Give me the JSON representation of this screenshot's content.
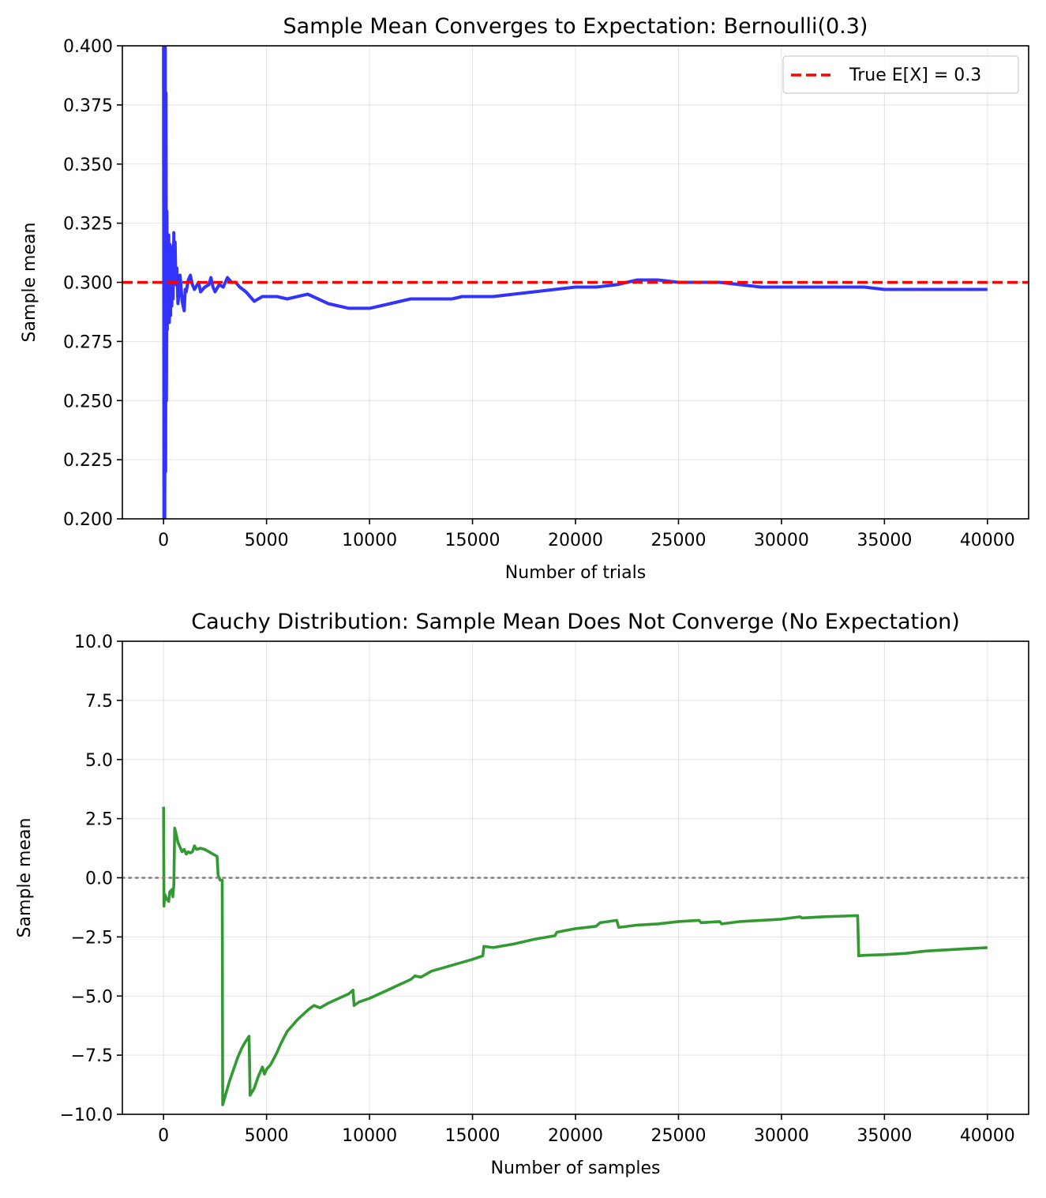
{
  "chart_data": [
    {
      "type": "line",
      "title": "Sample Mean Converges to Expectation: Bernoulli(0.3)",
      "xlabel": "Number of trials",
      "ylabel": "Sample mean",
      "xlim": [
        -2000,
        42000
      ],
      "ylim": [
        0.2,
        0.4
      ],
      "grid": true,
      "legend_position": "top-right",
      "xticks": [
        0,
        5000,
        10000,
        15000,
        20000,
        25000,
        30000,
        35000,
        40000
      ],
      "xtick_labels": [
        "0",
        "5000",
        "10000",
        "15000",
        "20000",
        "25000",
        "30000",
        "35000",
        "40000"
      ],
      "yticks": [
        0.2,
        0.225,
        0.25,
        0.275,
        0.3,
        0.325,
        0.35,
        0.375,
        0.4
      ],
      "ytick_labels": [
        "0.200",
        "0.225",
        "0.250",
        "0.275",
        "0.300",
        "0.325",
        "0.350",
        "0.375",
        "0.400"
      ],
      "reference_lines": [
        {
          "y": 0.3,
          "color": "#ff0000",
          "style": "dashed",
          "label": "True E[X] = 0.3"
        }
      ],
      "series": [
        {
          "color": "#3333ff",
          "points": [
            [
              0,
              0.4
            ],
            [
              20,
              0.2
            ],
            [
              40,
              0.4
            ],
            [
              60,
              0.2
            ],
            [
              80,
              0.4
            ],
            [
              100,
              0.22
            ],
            [
              120,
              0.38
            ],
            [
              140,
              0.25
            ],
            [
              160,
              0.33
            ],
            [
              180,
              0.28
            ],
            [
              200,
              0.315
            ],
            [
              220,
              0.29
            ],
            [
              250,
              0.32
            ],
            [
              280,
              0.283
            ],
            [
              310,
              0.316
            ],
            [
              340,
              0.286
            ],
            [
              370,
              0.315
            ],
            [
              400,
              0.29
            ],
            [
              430,
              0.311
            ],
            [
              460,
              0.293
            ],
            [
              500,
              0.321
            ],
            [
              530,
              0.305
            ],
            [
              560,
              0.317
            ],
            [
              600,
              0.299
            ],
            [
              650,
              0.306
            ],
            [
              700,
              0.291
            ],
            [
              750,
              0.296
            ],
            [
              800,
              0.303
            ],
            [
              900,
              0.292
            ],
            [
              1000,
              0.288
            ],
            [
              1050,
              0.297
            ],
            [
              1100,
              0.296
            ],
            [
              1200,
              0.301
            ],
            [
              1300,
              0.303
            ],
            [
              1400,
              0.299
            ],
            [
              1500,
              0.297
            ],
            [
              1700,
              0.3
            ],
            [
              1800,
              0.296
            ],
            [
              2000,
              0.298
            ],
            [
              2200,
              0.299
            ],
            [
              2300,
              0.302
            ],
            [
              2400,
              0.298
            ],
            [
              2500,
              0.296
            ],
            [
              2700,
              0.299
            ],
            [
              2900,
              0.298
            ],
            [
              3100,
              0.302
            ],
            [
              3300,
              0.3
            ],
            [
              3500,
              0.3
            ],
            [
              3700,
              0.298
            ],
            [
              4000,
              0.296
            ],
            [
              4200,
              0.294
            ],
            [
              4400,
              0.292
            ],
            [
              4600,
              0.293
            ],
            [
              4800,
              0.294
            ],
            [
              5000,
              0.294
            ],
            [
              5500,
              0.294
            ],
            [
              6000,
              0.293
            ],
            [
              6500,
              0.294
            ],
            [
              7000,
              0.295
            ],
            [
              7500,
              0.293
            ],
            [
              8000,
              0.291
            ],
            [
              8500,
              0.29
            ],
            [
              9000,
              0.289
            ],
            [
              9500,
              0.289
            ],
            [
              10000,
              0.289
            ],
            [
              10500,
              0.29
            ],
            [
              11000,
              0.291
            ],
            [
              11500,
              0.292
            ],
            [
              12000,
              0.293
            ],
            [
              12500,
              0.293
            ],
            [
              13000,
              0.293
            ],
            [
              13500,
              0.293
            ],
            [
              14000,
              0.293
            ],
            [
              14500,
              0.294
            ],
            [
              15000,
              0.294
            ],
            [
              16000,
              0.294
            ],
            [
              17000,
              0.295
            ],
            [
              18000,
              0.296
            ],
            [
              19000,
              0.297
            ],
            [
              20000,
              0.298
            ],
            [
              21000,
              0.298
            ],
            [
              22000,
              0.299
            ],
            [
              22500,
              0.3
            ],
            [
              23000,
              0.301
            ],
            [
              23500,
              0.301
            ],
            [
              24000,
              0.301
            ],
            [
              25000,
              0.3
            ],
            [
              26000,
              0.3
            ],
            [
              27000,
              0.3
            ],
            [
              28000,
              0.299
            ],
            [
              29000,
              0.298
            ],
            [
              30000,
              0.298
            ],
            [
              31000,
              0.298
            ],
            [
              32000,
              0.298
            ],
            [
              33000,
              0.298
            ],
            [
              34000,
              0.298
            ],
            [
              35000,
              0.297
            ],
            [
              36000,
              0.297
            ],
            [
              37000,
              0.297
            ],
            [
              38000,
              0.297
            ],
            [
              39000,
              0.297
            ],
            [
              40000,
              0.297
            ]
          ]
        }
      ]
    },
    {
      "type": "line",
      "title": "Cauchy Distribution: Sample Mean Does Not Converge (No Expectation)",
      "xlabel": "Number of samples",
      "ylabel": "Sample mean",
      "xlim": [
        -2000,
        42000
      ],
      "ylim": [
        -10,
        10
      ],
      "grid": true,
      "xticks": [
        0,
        5000,
        10000,
        15000,
        20000,
        25000,
        30000,
        35000,
        40000
      ],
      "xtick_labels": [
        "0",
        "5000",
        "10000",
        "15000",
        "20000",
        "25000",
        "30000",
        "35000",
        "40000"
      ],
      "yticks": [
        -10,
        -7.5,
        -5,
        -2.5,
        0,
        2.5,
        5,
        7.5,
        10
      ],
      "ytick_labels": [
        "−10.0",
        "−7.5",
        "−5.0",
        "−2.5",
        "0.0",
        "2.5",
        "5.0",
        "7.5",
        "10.0"
      ],
      "reference_lines": [
        {
          "y": 0,
          "color": "#808080",
          "style": "dotted"
        }
      ],
      "series": [
        {
          "color": "#339933",
          "points": [
            [
              0,
              3.0
            ],
            [
              20,
              -1.2
            ],
            [
              60,
              -0.7
            ],
            [
              150,
              -0.9
            ],
            [
              250,
              -1.0
            ],
            [
              300,
              -0.6
            ],
            [
              400,
              -0.5
            ],
            [
              450,
              -0.8
            ],
            [
              500,
              -0.3
            ],
            [
              540,
              2.1
            ],
            [
              600,
              1.9
            ],
            [
              700,
              1.5
            ],
            [
              800,
              1.3
            ],
            [
              900,
              1.1
            ],
            [
              1000,
              1.2
            ],
            [
              1100,
              1.0
            ],
            [
              1200,
              1.1
            ],
            [
              1300,
              1.05
            ],
            [
              1400,
              1.1
            ],
            [
              1500,
              1.35
            ],
            [
              1600,
              1.2
            ],
            [
              1800,
              1.25
            ],
            [
              2000,
              1.2
            ],
            [
              2200,
              1.1
            ],
            [
              2400,
              1.0
            ],
            [
              2600,
              0.9
            ],
            [
              2650,
              0.1
            ],
            [
              2750,
              -0.1
            ],
            [
              2850,
              -0.1
            ],
            [
              2870,
              -9.6
            ],
            [
              3000,
              -9.2
            ],
            [
              3200,
              -8.6
            ],
            [
              3400,
              -8.1
            ],
            [
              3600,
              -7.6
            ],
            [
              3800,
              -7.2
            ],
            [
              4000,
              -6.9
            ],
            [
              4150,
              -6.7
            ],
            [
              4200,
              -9.2
            ],
            [
              4400,
              -8.9
            ],
            [
              4600,
              -8.4
            ],
            [
              4700,
              -8.2
            ],
            [
              4800,
              -8.0
            ],
            [
              4900,
              -8.3
            ],
            [
              5000,
              -8.1
            ],
            [
              5200,
              -7.9
            ],
            [
              5500,
              -7.4
            ],
            [
              5700,
              -7.0
            ],
            [
              6000,
              -6.5
            ],
            [
              6500,
              -6.0
            ],
            [
              7000,
              -5.6
            ],
            [
              7300,
              -5.4
            ],
            [
              7600,
              -5.5
            ],
            [
              8000,
              -5.3
            ],
            [
              8500,
              -5.1
            ],
            [
              9000,
              -4.9
            ],
            [
              9200,
              -4.75
            ],
            [
              9250,
              -5.4
            ],
            [
              9500,
              -5.25
            ],
            [
              10000,
              -5.1
            ],
            [
              11000,
              -4.7
            ],
            [
              11500,
              -4.5
            ],
            [
              12000,
              -4.3
            ],
            [
              12200,
              -4.15
            ],
            [
              12500,
              -4.2
            ],
            [
              13000,
              -3.95
            ],
            [
              14000,
              -3.7
            ],
            [
              15000,
              -3.45
            ],
            [
              15500,
              -3.3
            ],
            [
              15550,
              -2.9
            ],
            [
              16000,
              -2.95
            ],
            [
              17000,
              -2.8
            ],
            [
              18000,
              -2.6
            ],
            [
              19000,
              -2.45
            ],
            [
              19100,
              -2.3
            ],
            [
              20000,
              -2.15
            ],
            [
              21000,
              -2.05
            ],
            [
              21200,
              -1.9
            ],
            [
              22000,
              -1.8
            ],
            [
              22100,
              -2.1
            ],
            [
              23000,
              -2.0
            ],
            [
              24000,
              -1.95
            ],
            [
              25000,
              -1.85
            ],
            [
              26000,
              -1.8
            ],
            [
              26100,
              -1.9
            ],
            [
              27000,
              -1.85
            ],
            [
              27100,
              -1.95
            ],
            [
              28000,
              -1.85
            ],
            [
              29000,
              -1.8
            ],
            [
              30000,
              -1.75
            ],
            [
              30900,
              -1.65
            ],
            [
              31000,
              -1.7
            ],
            [
              32000,
              -1.65
            ],
            [
              33000,
              -1.62
            ],
            [
              33700,
              -1.6
            ],
            [
              33750,
              -3.3
            ],
            [
              34000,
              -3.28
            ],
            [
              35000,
              -3.25
            ],
            [
              36000,
              -3.2
            ],
            [
              37000,
              -3.1
            ],
            [
              38000,
              -3.05
            ],
            [
              39000,
              -3.0
            ],
            [
              40000,
              -2.95
            ]
          ]
        }
      ]
    }
  ]
}
